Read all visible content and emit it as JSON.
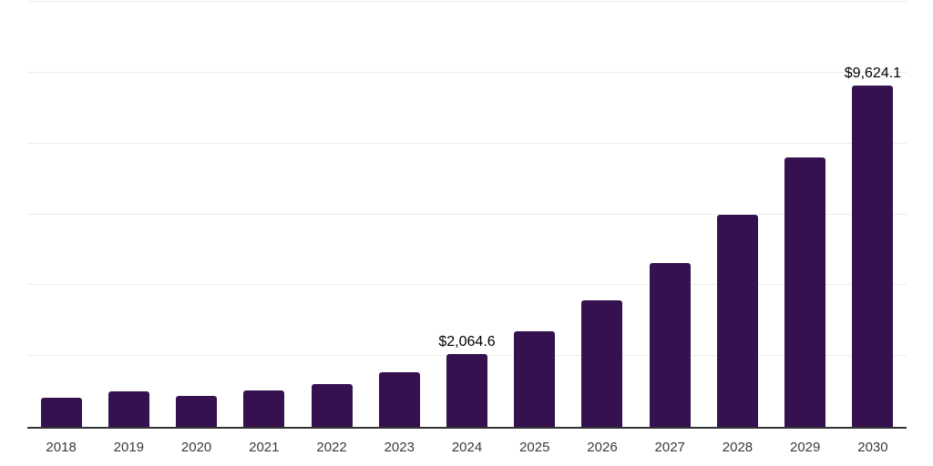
{
  "chart_data": {
    "type": "bar",
    "title": "",
    "xlabel": "",
    "ylabel": "",
    "categories": [
      "2018",
      "2019",
      "2020",
      "2021",
      "2022",
      "2023",
      "2024",
      "2025",
      "2026",
      "2027",
      "2028",
      "2029",
      "2030"
    ],
    "values": [
      830,
      1015,
      870,
      1030,
      1205,
      1540,
      2064.6,
      2705,
      3565,
      4620,
      5985,
      7615,
      9624.1
    ],
    "bar_labels": [
      "",
      "",
      "",
      "",
      "",
      "",
      "$2,064.6",
      "",
      "",
      "",
      "",
      "",
      "$9,624.1"
    ],
    "ylim": [
      0,
      12000
    ],
    "gridline_step": 2000,
    "grid": "horizontal",
    "legend": "none",
    "y_axis_tick_labels": "hidden",
    "colors": {
      "bar": "#35124F",
      "axis_line": "#333333",
      "gridline": "#ededed",
      "value_label_text": "#000000",
      "tick_label_text": "#3a3a3a",
      "background": "#ffffff"
    }
  }
}
